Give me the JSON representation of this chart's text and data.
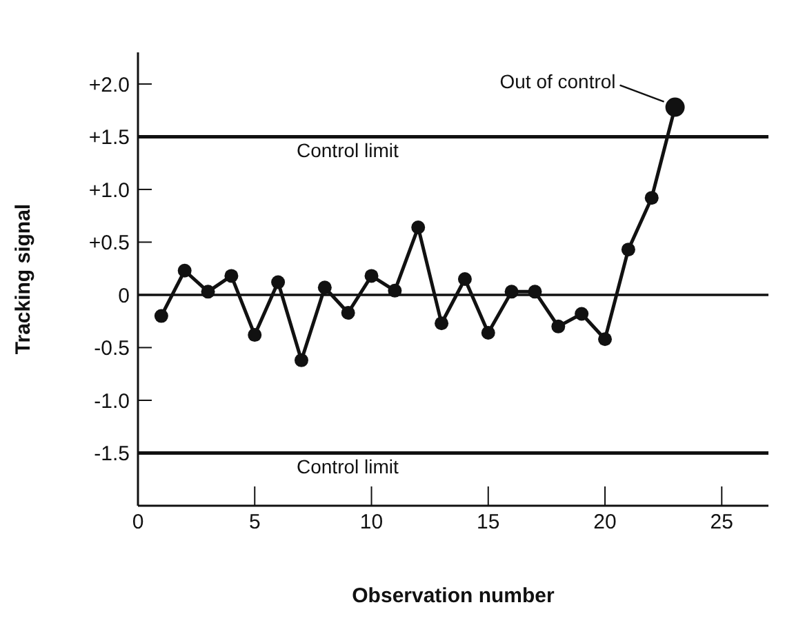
{
  "chart_data": {
    "type": "line",
    "xlabel": "Observation number",
    "ylabel": "Tracking signal",
    "x": [
      1,
      2,
      3,
      4,
      5,
      6,
      7,
      8,
      9,
      10,
      11,
      12,
      13,
      14,
      15,
      16,
      17,
      18,
      19,
      20,
      21,
      22,
      23
    ],
    "series": [
      {
        "color": "#111111",
        "values": [
          -0.2,
          0.23,
          0.03,
          0.18,
          -0.38,
          0.12,
          -0.62,
          0.07,
          -0.17,
          0.18,
          0.04,
          0.64,
          -0.27,
          0.15,
          -0.36,
          0.03,
          0.03,
          -0.3,
          -0.18,
          -0.42,
          0.43,
          0.92,
          1.78
        ]
      }
    ],
    "xlim": [
      0,
      27
    ],
    "xticks": [
      0,
      5,
      10,
      15,
      20,
      25
    ],
    "ylim": [
      -2,
      2.3
    ],
    "yticks": [
      {
        "value": 2,
        "label": "+2.0"
      },
      {
        "value": 1.5,
        "label": "+1.5"
      },
      {
        "value": 1,
        "label": "+1.0"
      },
      {
        "value": 0.5,
        "label": "+0.5"
      },
      0,
      {
        "value": -0.5,
        "label": "-0.5"
      },
      {
        "value": -1,
        "label": "-1.0"
      },
      {
        "value": -1.5,
        "label": "-1.5"
      }
    ],
    "ref_lines": [
      {
        "axis": "y",
        "value": 1.5,
        "label": "Control limit",
        "color": "#111111"
      },
      {
        "axis": "y",
        "value": 0,
        "color": "#111111"
      },
      {
        "axis": "y",
        "value": -1.5,
        "label": "Control limit",
        "color": "#111111"
      }
    ],
    "annotations": [
      {
        "text": "Out of control",
        "x": 23,
        "y": 1.78
      }
    ],
    "marker": "circle",
    "line_style": "solid"
  }
}
